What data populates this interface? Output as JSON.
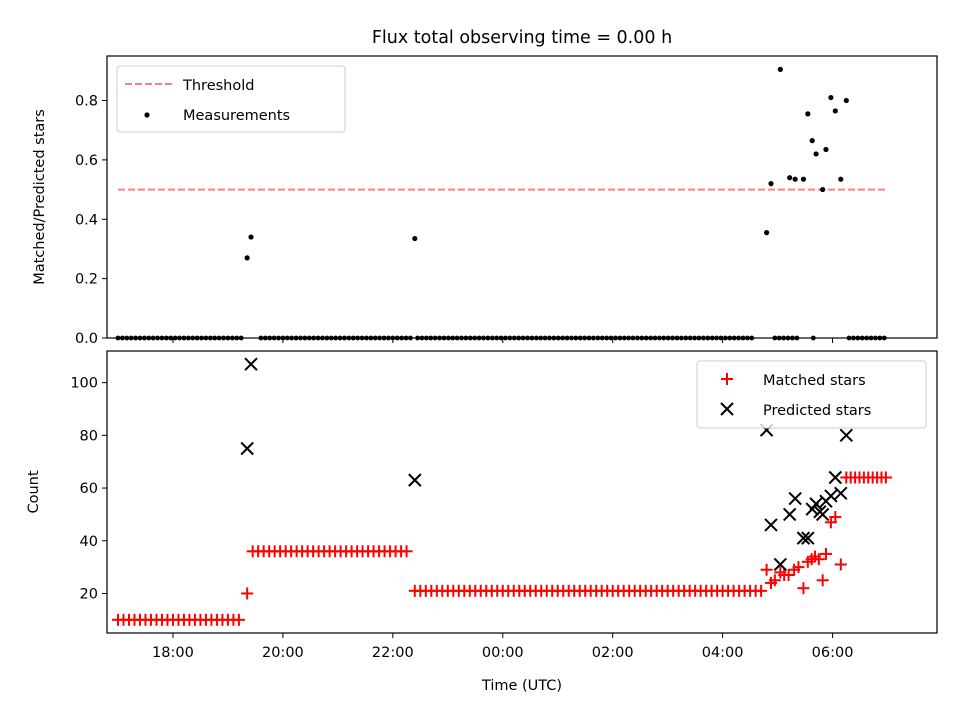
{
  "chart_data": [
    {
      "type": "scatter",
      "title": "Flux total observing time = 0.00 h",
      "xlabel": "",
      "ylabel": "Matched/Predicted stars",
      "xlim": [
        -7.2,
        7.9
      ],
      "ylim": [
        0,
        0.95
      ],
      "x_ticks": [
        -6,
        -4,
        -2,
        0,
        2,
        4,
        6
      ],
      "y_ticks": [
        0.0,
        0.2,
        0.4,
        0.6,
        0.8
      ],
      "y_tick_labels": [
        "0.0",
        "0.2",
        "0.4",
        "0.6",
        "0.8"
      ],
      "grid": false,
      "legend": "top-left",
      "threshold": {
        "name": "Threshold",
        "value": 0.5,
        "x_range": [
          -7.0,
          7.0
        ],
        "color": "#ff7f7f",
        "style": "dashed"
      },
      "series": [
        {
          "name": "Measurements",
          "color": "#000000",
          "marker": "dot",
          "zero_segments": [
            [
              -7.0,
              -4.7
            ],
            [
              -4.4,
              -1.65
            ],
            [
              -1.55,
              4.6
            ],
            [
              4.95,
              5.4
            ],
            [
              5.65,
              5.72
            ],
            [
              6.3,
              7.0
            ]
          ],
          "zero_step": 0.08,
          "points": [
            {
              "x": -4.65,
              "y": 0.27
            },
            {
              "x": -4.58,
              "y": 0.34
            },
            {
              "x": -1.6,
              "y": 0.335
            },
            {
              "x": 4.8,
              "y": 0.355
            },
            {
              "x": 4.88,
              "y": 0.52
            },
            {
              "x": 5.05,
              "y": 0.905
            },
            {
              "x": 5.22,
              "y": 0.54
            },
            {
              "x": 5.32,
              "y": 0.535
            },
            {
              "x": 5.47,
              "y": 0.535
            },
            {
              "x": 5.55,
              "y": 0.755
            },
            {
              "x": 5.63,
              "y": 0.665
            },
            {
              "x": 5.7,
              "y": 0.62
            },
            {
              "x": 5.82,
              "y": 0.5
            },
            {
              "x": 5.88,
              "y": 0.635
            },
            {
              "x": 5.97,
              "y": 0.81
            },
            {
              "x": 6.05,
              "y": 0.765
            },
            {
              "x": 6.15,
              "y": 0.535
            },
            {
              "x": 6.25,
              "y": 0.8
            }
          ]
        }
      ]
    },
    {
      "type": "scatter",
      "title": "",
      "xlabel": "Time (UTC)",
      "ylabel": "Count",
      "xlim": [
        -7.2,
        7.9
      ],
      "ylim": [
        5,
        112
      ],
      "x_ticks": [
        -6,
        -4,
        -2,
        0,
        2,
        4,
        6
      ],
      "x_tick_labels": [
        "18:00",
        "20:00",
        "22:00",
        "00:00",
        "02:00",
        "04:00",
        "06:00"
      ],
      "y_ticks": [
        20,
        40,
        60,
        80,
        100
      ],
      "y_tick_labels": [
        "20",
        "40",
        "60",
        "80",
        "100"
      ],
      "grid": false,
      "legend": "top-right",
      "series": [
        {
          "name": "Matched stars",
          "color": "#ff0000",
          "marker": "plus",
          "runs": [
            {
              "x_start": -7.0,
              "x_end": -4.75,
              "step": 0.1,
              "y": 10
            },
            {
              "x_start": -4.55,
              "x_end": -1.7,
              "step": 0.1,
              "y": 36
            },
            {
              "x_start": -1.6,
              "x_end": 4.7,
              "step": 0.1,
              "y": 21
            },
            {
              "x_start": 6.25,
              "x_end": 7.0,
              "step": 0.08,
              "y": 64
            }
          ],
          "points": [
            {
              "x": -4.65,
              "y": 20
            },
            {
              "x": 4.8,
              "y": 29
            },
            {
              "x": 4.88,
              "y": 24
            },
            {
              "x": 4.95,
              "y": 25
            },
            {
              "x": 5.05,
              "y": 28
            },
            {
              "x": 5.12,
              "y": 27
            },
            {
              "x": 5.2,
              "y": 27
            },
            {
              "x": 5.3,
              "y": 29
            },
            {
              "x": 5.38,
              "y": 30
            },
            {
              "x": 5.47,
              "y": 22
            },
            {
              "x": 5.55,
              "y": 32
            },
            {
              "x": 5.62,
              "y": 33
            },
            {
              "x": 5.68,
              "y": 34
            },
            {
              "x": 5.75,
              "y": 33
            },
            {
              "x": 5.82,
              "y": 25
            },
            {
              "x": 5.88,
              "y": 35
            },
            {
              "x": 5.97,
              "y": 47
            },
            {
              "x": 6.05,
              "y": 49
            },
            {
              "x": 6.15,
              "y": 31
            }
          ]
        },
        {
          "name": "Predicted stars",
          "color": "#000000",
          "marker": "x",
          "points": [
            {
              "x": -4.65,
              "y": 75
            },
            {
              "x": -4.58,
              "y": 107
            },
            {
              "x": -1.6,
              "y": 63
            },
            {
              "x": 4.8,
              "y": 82
            },
            {
              "x": 4.88,
              "y": 46
            },
            {
              "x": 5.05,
              "y": 31
            },
            {
              "x": 5.22,
              "y": 50
            },
            {
              "x": 5.32,
              "y": 56
            },
            {
              "x": 5.47,
              "y": 41
            },
            {
              "x": 5.55,
              "y": 41
            },
            {
              "x": 5.63,
              "y": 52
            },
            {
              "x": 5.7,
              "y": 54
            },
            {
              "x": 5.77,
              "y": 51
            },
            {
              "x": 5.82,
              "y": 50
            },
            {
              "x": 5.88,
              "y": 55
            },
            {
              "x": 5.97,
              "y": 57
            },
            {
              "x": 6.05,
              "y": 64
            },
            {
              "x": 6.15,
              "y": 58
            },
            {
              "x": 6.25,
              "y": 80
            }
          ]
        }
      ]
    }
  ]
}
